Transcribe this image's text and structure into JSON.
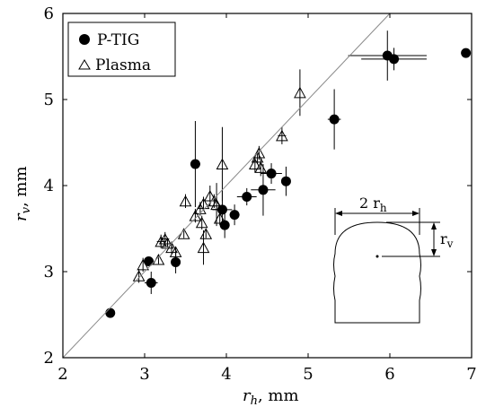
{
  "chart_data": {
    "type": "scatter",
    "xlim": [
      2,
      7
    ],
    "ylim": [
      2,
      6
    ],
    "x_ticks": [
      2,
      3,
      4,
      5,
      6,
      7
    ],
    "y_ticks": [
      2,
      3,
      4,
      5,
      6
    ],
    "xlabel": {
      "var": "r",
      "sub": "h",
      "unit": ", mm"
    },
    "ylabel": {
      "var": "r",
      "sub": "v",
      "unit": ", mm"
    },
    "reference_line": {
      "from": [
        2,
        2
      ],
      "to": [
        6,
        6
      ]
    },
    "legend": {
      "position": "top-left"
    },
    "series": [
      {
        "name": "P-TIG",
        "marker": "filled-circle",
        "points": [
          {
            "x": 2.58,
            "y": 2.52,
            "xerr": 0,
            "yerr": 0
          },
          {
            "x": 3.05,
            "y": 3.12,
            "xerr": 0.06,
            "yerr": 0.05
          },
          {
            "x": 3.08,
            "y": 2.87,
            "xerr": 0.08,
            "yerr": 0.13
          },
          {
            "x": 3.38,
            "y": 3.11,
            "xerr": 0.03,
            "yerr": 0.13
          },
          {
            "x": 3.62,
            "y": 4.25,
            "xerr": 0.06,
            "yerr": 0.5
          },
          {
            "x": 3.95,
            "y": 3.72,
            "xerr": 0.12,
            "yerr": 0.22
          },
          {
            "x": 3.98,
            "y": 3.54,
            "xerr": 0.05,
            "yerr": 0.15
          },
          {
            "x": 4.1,
            "y": 3.66,
            "xerr": 0.06,
            "yerr": 0.12
          },
          {
            "x": 4.25,
            "y": 3.87,
            "xerr": 0.12,
            "yerr": 0.1
          },
          {
            "x": 4.45,
            "y": 3.95,
            "xerr": 0.15,
            "yerr": 0.3
          },
          {
            "x": 4.55,
            "y": 4.14,
            "xerr": 0.13,
            "yerr": 0.12
          },
          {
            "x": 4.73,
            "y": 4.05,
            "xerr": 0.05,
            "yerr": 0.17
          },
          {
            "x": 5.32,
            "y": 4.77,
            "xerr": 0.08,
            "yerr": 0.35
          },
          {
            "x": 5.97,
            "y": 5.51,
            "xerr": 0.48,
            "yerr": 0.29
          },
          {
            "x": 6.05,
            "y": 5.47,
            "xerr": 0.4,
            "yerr": 0.13
          },
          {
            "x": 6.93,
            "y": 5.54,
            "xerr": 0,
            "yerr": 0.05
          }
        ]
      },
      {
        "name": "Plasma",
        "marker": "open-triangle",
        "points": [
          {
            "x": 2.93,
            "y": 2.95,
            "xerr": 0,
            "yerr": 0.08
          },
          {
            "x": 2.98,
            "y": 3.08,
            "xerr": 0,
            "yerr": 0.08
          },
          {
            "x": 3.17,
            "y": 3.14,
            "xerr": 0,
            "yerr": 0.05
          },
          {
            "x": 3.2,
            "y": 3.35,
            "xerr": 0.05,
            "yerr": 0.08
          },
          {
            "x": 3.25,
            "y": 3.38,
            "xerr": 0.05,
            "yerr": 0.08
          },
          {
            "x": 3.28,
            "y": 3.33,
            "xerr": 0,
            "yerr": 0.05
          },
          {
            "x": 3.33,
            "y": 3.28,
            "xerr": 0,
            "yerr": 0.07
          },
          {
            "x": 3.38,
            "y": 3.23,
            "xerr": 0,
            "yerr": 0.05
          },
          {
            "x": 3.48,
            "y": 3.44,
            "xerr": 0,
            "yerr": 0.05
          },
          {
            "x": 3.5,
            "y": 3.82,
            "xerr": 0,
            "yerr": 0.08
          },
          {
            "x": 3.62,
            "y": 3.65,
            "xerr": 0,
            "yerr": 0.08
          },
          {
            "x": 3.68,
            "y": 3.73,
            "xerr": 0,
            "yerr": 0.08
          },
          {
            "x": 3.7,
            "y": 3.57,
            "xerr": 0,
            "yerr": 0.08
          },
          {
            "x": 3.72,
            "y": 3.79,
            "xerr": 0,
            "yerr": 0.08
          },
          {
            "x": 3.72,
            "y": 3.28,
            "xerr": 0,
            "yerr": 0.2
          },
          {
            "x": 3.75,
            "y": 3.44,
            "xerr": 0,
            "yerr": 0.05
          },
          {
            "x": 3.8,
            "y": 3.88,
            "xerr": 0,
            "yerr": 0.12
          },
          {
            "x": 3.85,
            "y": 3.82,
            "xerr": 0,
            "yerr": 0.08
          },
          {
            "x": 3.88,
            "y": 3.78,
            "xerr": 0,
            "yerr": 0.25
          },
          {
            "x": 3.92,
            "y": 3.62,
            "xerr": 0,
            "yerr": 0.08
          },
          {
            "x": 3.95,
            "y": 4.25,
            "xerr": 0,
            "yerr": 0.43
          },
          {
            "x": 4.35,
            "y": 4.25,
            "xerr": 0,
            "yerr": 0.1
          },
          {
            "x": 4.38,
            "y": 4.33,
            "xerr": 0,
            "yerr": 0.08
          },
          {
            "x": 4.4,
            "y": 4.38,
            "xerr": 0,
            "yerr": 0.08
          },
          {
            "x": 4.42,
            "y": 4.21,
            "xerr": 0,
            "yerr": 0.1
          },
          {
            "x": 4.68,
            "y": 4.58,
            "xerr": 0.05,
            "yerr": 0.1
          },
          {
            "x": 4.9,
            "y": 5.08,
            "xerr": 0,
            "yerr": 0.27
          }
        ]
      }
    ],
    "inset": {
      "width_label": "2 r",
      "width_sub": "h",
      "height_label": "r",
      "height_sub": "v"
    }
  }
}
